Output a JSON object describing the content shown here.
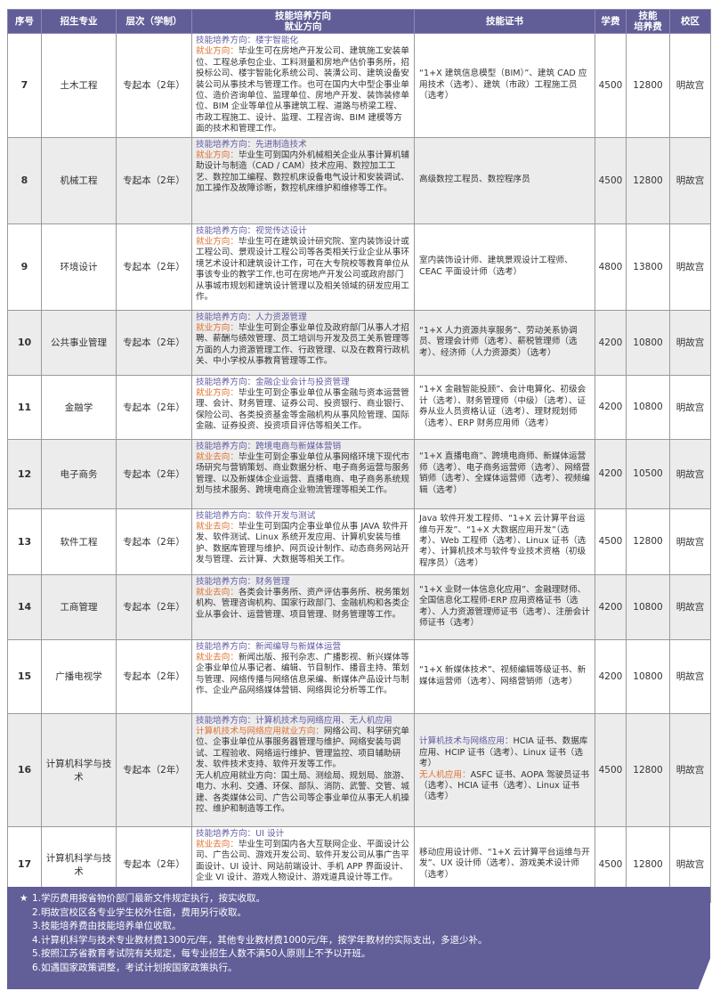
{
  "header": {
    "no": "序号",
    "major": "招生专业",
    "level": "层次（学制）",
    "direction_1": "技能培养方向",
    "direction_2": "就业方向",
    "cert": "技能证书",
    "tuition": "学费",
    "skill_fee_1": "技能",
    "skill_fee_2": "培养费",
    "campus": "校区"
  },
  "colors": {
    "header_bg": "#615d97",
    "skill_label": "#5f5aa0",
    "job_label": "#e0702e",
    "alt_row": "#ececec"
  },
  "rows": [
    {
      "no": "7",
      "major": "土木工程",
      "level": "专起本（2年）",
      "skill_label": "技能培养方向：",
      "skill": "楼宇智能化",
      "job_label": "就业方向：",
      "job": "毕业生可在房地产开发公司、建筑施工安装单位、工程总承包企业、工料测量和房地产估价事务所，招投标公司、楼宇智能化系统公司、装潢公司、建筑设备安装公司从事技术与管理工作。也可在国内大中型企事业单位、造价咨询单位、监理单位、房地产开发、装饰装修单位、BIM 企业等单位从事建筑工程、道路与桥梁工程、市政工程施工、设计、监理、工程咨询、BIM 建模等方面的技术和管理工作。",
      "cert": [
        {
          "label": "",
          "text": "“1+X 建筑信息模型（BIM）”、建筑 CAD 应用技术（选考）、建筑（市政）工程施工员（选考）"
        }
      ],
      "tuition": "4500",
      "skill_fee": "12800",
      "campus": "明故宫"
    },
    {
      "no": "8",
      "major": "机械工程",
      "level": "专起本（2年）",
      "skill_label": "技能培养方向：",
      "skill": "先进制造技术",
      "job_label": "就业方向：",
      "job": "毕业生可到国内外机械相关企业从事计算机辅助设计与制造（CAD / CAM）技术应用、数控加工工艺、数控加工编程、数控机床设备电气设计和安装调试、加工操作及故障诊断，数控机床维护和维修等工作。",
      "cert": [
        {
          "label": "",
          "text": "高级数控工程员、数控程序员"
        }
      ],
      "tuition": "4500",
      "skill_fee": "12800",
      "campus": "明故宫"
    },
    {
      "no": "9",
      "major": "环境设计",
      "level": "专起本（2年）",
      "skill_label": "技能培养方向：",
      "skill": "视觉传达设计",
      "job_label": "就业方向：",
      "job": "毕业生可在建筑设计研究院、室内装饰设计或工程公司、景观设计工程公司等各类相关行业企业从事环境艺术设计和建筑设计工作，可在大专院校等教育单位从事该专业的教学工作,也可在房地产开发公司或政府部门从事城市规划和建筑设计管理以及相关领域的研发应用工作。",
      "cert": [
        {
          "label": "",
          "text": "室内装饰设计师、建筑景观设计工程师、CEAC 平面设计师（选考）"
        }
      ],
      "tuition": "4800",
      "skill_fee": "13800",
      "campus": "明故宫"
    },
    {
      "no": "10",
      "major": "公共事业管理",
      "level": "专起本（2年）",
      "skill_label": "技能培养方向：",
      "skill": "人力资源管理",
      "job_label": "就业方向：",
      "job": "毕业生可到企事业单位及政府部门从事人才招聘、薪酬与绩效管理、员工培训与开发及员工关系管理等方面的人力资源管理工作、行政管理、以及在教育行政机关、中小学校从事教育管理等工作。",
      "cert": [
        {
          "label": "",
          "text": "“1+X 人力资源共享服务”、劳动关系协调员、管理会计师（选考）、薪税管理师（选考）、经济师（人力资源类）（选考）"
        }
      ],
      "tuition": "4200",
      "skill_fee": "10800",
      "campus": "明故宫"
    },
    {
      "no": "11",
      "major": "金融学",
      "level": "专起本（2年）",
      "skill_label": "技能培养方向：",
      "skill": "金融企业会计与投资管理",
      "job_label": "就业方向：",
      "job": "毕业生可到企事业单位从事金融与资本运营管理、会计、财务管理、证券公司、投资银行、商业银行、保险公司、各类投资基金等金融机构从事风险管理、国际金融、证券投资、投资项目评估等相关工作。",
      "cert": [
        {
          "label": "",
          "text": "“1+X 金融智能投顾”、会计电算化、初级会计（选考）、财务管理师（中级）（选考）、证券从业人员资格认证（选考）、理财规划师（选考）、ERP 财务应用师（选考）"
        }
      ],
      "tuition": "4200",
      "skill_fee": "10800",
      "campus": "明故宫"
    },
    {
      "no": "12",
      "major": "电子商务",
      "level": "专起本（2年）",
      "skill_label": "技能培养方向：",
      "skill": "跨境电商与新媒体营销",
      "job_label": "就业去向：",
      "job": "毕业生可到企事业单位从事网络环境下现代市场研究与营销策划、商业数据分析、电子商务运营与服务管理、以及新媒体企业运营、直播电商、电子商务系统规划与技术服务、跨境电商企业物流管理等相关工作。",
      "cert": [
        {
          "label": "",
          "text": "“1+X 直播电商”、跨境电商师、新媒体运营师（选考）、电子商务运营师（选考）、网络营销师（选考）、全媒体运营师（选考）、视频编辑（选考）"
        }
      ],
      "tuition": "4200",
      "skill_fee": "10500",
      "campus": "明故宫"
    },
    {
      "no": "13",
      "major": "软件工程",
      "level": "专起本（2年）",
      "skill_label": "技能培养方向：",
      "skill": "软件开发与测试",
      "job_label": "就业去向：",
      "job": "毕业生可到国内企事业单位从事 JAVA 软件开发、软件测试、Linux 系统开发应用、计算机安装与维护、数据库管理与维护、网页设计制作、动态商务网站开发与管理、云计算、大数据等相关工作。",
      "cert": [
        {
          "label": "",
          "text": "Java 软件开发工程师、“1+X 云计算平台运维与开发”、“1+X 大数据应用开发”（选考）、Web 工程师（选考）、Linux 证书（选考）、计算机技术与软件专业技术资格（初级程序员）（选考）"
        }
      ],
      "tuition": "4500",
      "skill_fee": "12800",
      "campus": "明故宫"
    },
    {
      "no": "14",
      "major": "工商管理",
      "level": "专起本（2年）",
      "skill_label": "技能培养方向：",
      "skill": "财务管理",
      "job_label": "就业去向：",
      "job": "各类会计事务所、资产评估事务所、税务策划机构、管理咨询机构、国家行政部门、金融机构和各类企业从事会计、运营管理、项目管理、财务管理等工作。",
      "cert": [
        {
          "label": "",
          "text": "“1+X 业财一体信息化应用”、金融理财师、全国信息化工程师-ERP 应用资格证书（选考）、人力资源管理师证书（选考）、注册会计师证书（选考）"
        }
      ],
      "tuition": "4200",
      "skill_fee": "10800",
      "campus": "明故宫"
    },
    {
      "no": "15",
      "major": "广播电视学",
      "level": "专起本（2年）",
      "skill_label": "技能培养方向：",
      "skill": "新闻编导与新媒体运营",
      "job_label": "就业去向：",
      "job": "新闻出版、报刊杂志、广播影视、新兴媒体等企事业单位从事记者、编辑、节目制作、播音主持、策划与管理、网络传播与网络信息采编、新媒体产品设计与制作、企业产品网络媒体营销、网络舆论分析等工作。",
      "cert": [
        {
          "label": "",
          "text": "“1+X 新媒体技术”、视频编辑等级证书、新媒体运营师（选考）、网络营销师（选考）"
        }
      ],
      "tuition": "4200",
      "skill_fee": "10800",
      "campus": "明故宫"
    },
    {
      "no": "16",
      "major": "计算机科学与技术",
      "level": "专起本（2年）",
      "skill_label": "技能培养方向：",
      "skill": "计算机技术与网络应用、无人机应用",
      "job_label": "计算机技术与网络应用就业方向：",
      "job": "网络公司、科学研究单位、企事业单位从事服务器管理与维护、网络安装与调试、工程验收、网络运行维护、管理监控、项目辅助研发、软件技术支持、软件开发等工作。",
      "extra": "无人机应用就业方向：国土局、测绘局、规划局、旅游、电力、水利、交通、环保、部队、消防、武警、交管、城建、各类媒体公司、广告公司等企事业单位从事无人机操控、维护和制造等工作。",
      "cert": [
        {
          "label": "计算机技术与网络应用：",
          "label_color": "purple",
          "text": "HCIA 证书、数据库应用、HCIP 证书（选考）、Linux 证书（选考）"
        },
        {
          "label": "无人机应用：",
          "label_color": "orange",
          "text": "ASFC 证书、AOPA 驾驶员证书（选考）、HCIA 证书（选考）、Linux 证书（选考）"
        }
      ],
      "tuition": "4500",
      "skill_fee": "12800",
      "campus": "明故宫"
    },
    {
      "no": "17",
      "major": "计算机科学与技术",
      "level": "专起本（2年）",
      "skill_label": "技能培养方向：",
      "skill": "UI 设计",
      "job_label": "就业去向：",
      "job": "毕业生可到国内各大互联网企业、平面设计公司、广告公司、游戏开发公司、软件开发公司从事广告平面设计、UI 设计、网站前端设计、手机 APP 界面设计、企业 VI 设计、游戏人物设计、游戏道具设计等工作。",
      "cert": [
        {
          "label": "",
          "text": "移动应用设计师、“1+X 云计算平台运维与开发”、UX 设计师（选考）、游戏美术设计师（选考）"
        }
      ],
      "tuition": "4500",
      "skill_fee": "12800",
      "campus": "明故宫"
    }
  ],
  "notes": {
    "star": "★",
    "items": [
      "1.学历费用按省物价部门最新文件规定执行，按实收取。",
      "2.明故宫校区各专业学生校外住宿，费用另行收取。",
      "3.技能培养费由技能培养单位收取。",
      "4.计算机科学与技术专业教材费1300元/年，其他专业教材费1000元/年，按学年教材的实际支出，多退少补。",
      "5.按照江苏省教育考试院有关规定，每专业招生人数不满50人原则上不予以开班。",
      "6.如遇国家政策调整，考试计划按国家政策执行。"
    ]
  }
}
